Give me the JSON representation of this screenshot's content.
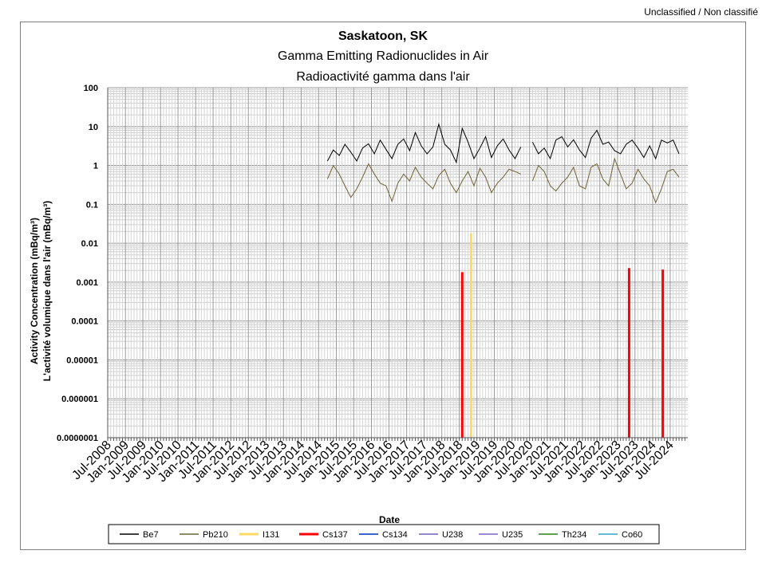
{
  "classification": "Unclassified / Non classifié",
  "chart_data": {
    "type": "line",
    "title": "Saskatoon, SK",
    "subtitle_en": "Gamma Emitting Radionuclides in Air",
    "subtitle_fr": "Radioactivité gamma dans l'air",
    "xlabel": "Date",
    "ylabel_en": "Activity Concentration  (mBq/m³)",
    "ylabel_fr": "L'activité volumique dans l'air (mBq/m³)",
    "y_scale": "log",
    "ylim": [
      1e-07,
      100
    ],
    "y_ticks": [
      {
        "value": 100,
        "label": "100"
      },
      {
        "value": 10,
        "label": "10"
      },
      {
        "value": 1,
        "label": "1"
      },
      {
        "value": 0.1,
        "label": "0.1"
      },
      {
        "value": 0.01,
        "label": "0.01"
      },
      {
        "value": 0.001,
        "label": "0.001"
      },
      {
        "value": 0.0001,
        "label": "0.0001"
      },
      {
        "value": 1e-05,
        "label": "0.00001"
      },
      {
        "value": 1e-06,
        "label": "0.000001"
      },
      {
        "value": 1e-07,
        "label": "0.0000001"
      }
    ],
    "x_range": [
      "2008-07-01",
      "2024-12-31"
    ],
    "x_tick_labels": [
      "Jul-2008",
      "Jan-2009",
      "Jul-2009",
      "Jan-2010",
      "Jul-2010",
      "Jan-2011",
      "Jul-2011",
      "Jan-2012",
      "Jul-2012",
      "Jan-2013",
      "Jul-2013",
      "Jan-2014",
      "Jul-2014",
      "Jan-2015",
      "Jul-2015",
      "Jan-2016",
      "Jul-2016",
      "Jan-2017",
      "Jul-2017",
      "Jan-2018",
      "Jul-2018",
      "Jan-2019",
      "Jul-2019",
      "Jan-2020",
      "Jul-2020",
      "Jan-2021",
      "Jul-2021",
      "Jan-2022",
      "Jul-2022",
      "Jan-2023",
      "Jul-2023",
      "Jan-2024",
      "Jul-2024"
    ],
    "grid": true,
    "legend_position": "bottom",
    "series": [
      {
        "name": "Be7",
        "color": "#000000",
        "kind": "line",
        "segments": [
          {
            "x": [
              "2014-10-01",
              "2014-12-01",
              "2015-02-01",
              "2015-04-01",
              "2015-06-01",
              "2015-08-01",
              "2015-10-01",
              "2015-12-01",
              "2016-02-01",
              "2016-04-01",
              "2016-06-01",
              "2016-08-01",
              "2016-10-01",
              "2016-12-01",
              "2017-02-01",
              "2017-04-01",
              "2017-06-01",
              "2017-08-01",
              "2017-10-01",
              "2017-12-01",
              "2018-02-01",
              "2018-04-01",
              "2018-06-01",
              "2018-08-01",
              "2018-10-01",
              "2018-12-01",
              "2019-02-01",
              "2019-04-01",
              "2019-06-01",
              "2019-08-01",
              "2019-10-01",
              "2019-12-01",
              "2020-02-01",
              "2020-04-01"
            ],
            "y": [
              1.3,
              2.5,
              1.8,
              3.5,
              2.2,
              1.3,
              2.8,
              3.6,
              2.0,
              4.5,
              2.6,
              1.5,
              3.5,
              4.8,
              2.4,
              7.0,
              3.2,
              2.0,
              3.0,
              11.5,
              3.5,
              2.5,
              1.2,
              9.0,
              4.0,
              1.5,
              2.8,
              5.5,
              1.6,
              3.2,
              4.8,
              2.5,
              1.5,
              3.0
            ]
          },
          {
            "x": [
              "2020-08-01",
              "2020-10-01",
              "2020-12-01",
              "2021-02-01",
              "2021-04-01",
              "2021-06-01",
              "2021-08-01",
              "2021-10-01",
              "2021-12-01",
              "2022-02-01",
              "2022-04-01",
              "2022-06-01",
              "2022-08-01",
              "2022-10-01",
              "2022-12-01",
              "2023-02-01",
              "2023-04-01",
              "2023-06-01",
              "2023-08-01",
              "2023-10-01",
              "2023-12-01",
              "2024-02-01",
              "2024-04-01",
              "2024-06-01",
              "2024-08-01",
              "2024-10-01"
            ],
            "y": [
              4.0,
              2.0,
              2.8,
              1.5,
              4.5,
              5.5,
              3.0,
              4.6,
              2.5,
              1.6,
              5.0,
              8.0,
              3.5,
              4.0,
              2.4,
              2.0,
              3.5,
              4.5,
              2.8,
              1.6,
              3.2,
              1.5,
              4.5,
              3.8,
              4.5,
              2.0
            ]
          }
        ]
      },
      {
        "name": "Pb210",
        "color": "#6e6235",
        "kind": "line",
        "segments": [
          {
            "x": [
              "2014-10-01",
              "2014-12-01",
              "2015-02-01",
              "2015-04-01",
              "2015-06-01",
              "2015-08-01",
              "2015-10-01",
              "2015-12-01",
              "2016-02-01",
              "2016-04-01",
              "2016-06-01",
              "2016-08-01",
              "2016-10-01",
              "2016-12-01",
              "2017-02-01",
              "2017-04-01",
              "2017-06-01",
              "2017-08-01",
              "2017-10-01",
              "2017-12-01",
              "2018-02-01",
              "2018-04-01",
              "2018-06-01",
              "2018-08-01",
              "2018-10-01",
              "2018-12-01",
              "2019-02-01",
              "2019-04-01",
              "2019-06-01",
              "2019-08-01",
              "2019-10-01",
              "2019-12-01",
              "2020-02-01",
              "2020-04-01"
            ],
            "y": [
              0.45,
              1.0,
              0.6,
              0.3,
              0.15,
              0.25,
              0.5,
              1.1,
              0.6,
              0.35,
              0.3,
              0.12,
              0.35,
              0.6,
              0.4,
              0.9,
              0.5,
              0.35,
              0.25,
              0.55,
              0.8,
              0.35,
              0.2,
              0.4,
              0.7,
              0.3,
              0.85,
              0.5,
              0.2,
              0.35,
              0.5,
              0.8,
              0.7,
              0.6
            ]
          },
          {
            "x": [
              "2020-08-01",
              "2020-10-01",
              "2020-12-01",
              "2021-02-01",
              "2021-04-01",
              "2021-06-01",
              "2021-08-01",
              "2021-10-01",
              "2021-12-01",
              "2022-02-01",
              "2022-04-01",
              "2022-06-01",
              "2022-08-01",
              "2022-10-01",
              "2022-12-01",
              "2023-02-01",
              "2023-04-01",
              "2023-06-01",
              "2023-08-01",
              "2023-10-01",
              "2023-12-01",
              "2024-02-01",
              "2024-04-01",
              "2024-06-01",
              "2024-08-01",
              "2024-10-01"
            ],
            "y": [
              0.4,
              1.0,
              0.7,
              0.3,
              0.22,
              0.35,
              0.5,
              0.9,
              0.3,
              0.25,
              0.9,
              1.1,
              0.45,
              0.3,
              1.5,
              0.6,
              0.25,
              0.35,
              0.8,
              0.45,
              0.3,
              0.11,
              0.25,
              0.7,
              0.8,
              0.5
            ]
          }
        ]
      },
      {
        "name": "I131",
        "color": "#ffd966",
        "kind": "spike",
        "points": [
          {
            "x": "2018-11-01",
            "y": 0.018
          }
        ]
      },
      {
        "name": "Cs137",
        "color": "#ff0000",
        "kind": "spike",
        "points": [
          {
            "x": "2018-08-01",
            "y": 0.0018
          },
          {
            "x": "2023-05-01",
            "y": 0.0023
          },
          {
            "x": "2024-04-15",
            "y": 0.0021
          }
        ]
      },
      {
        "name": "Cs134",
        "color": "#002ebd",
        "kind": "line",
        "segments": []
      },
      {
        "name": "U238",
        "color": "#7060c0",
        "kind": "line",
        "segments": []
      },
      {
        "name": "U235",
        "color": "#8060c8",
        "kind": "line",
        "segments": []
      },
      {
        "name": "Th234",
        "color": "#2e7d1f",
        "kind": "line",
        "segments": []
      },
      {
        "name": "Co60",
        "color": "#37a0c8",
        "kind": "line",
        "segments": []
      }
    ]
  }
}
